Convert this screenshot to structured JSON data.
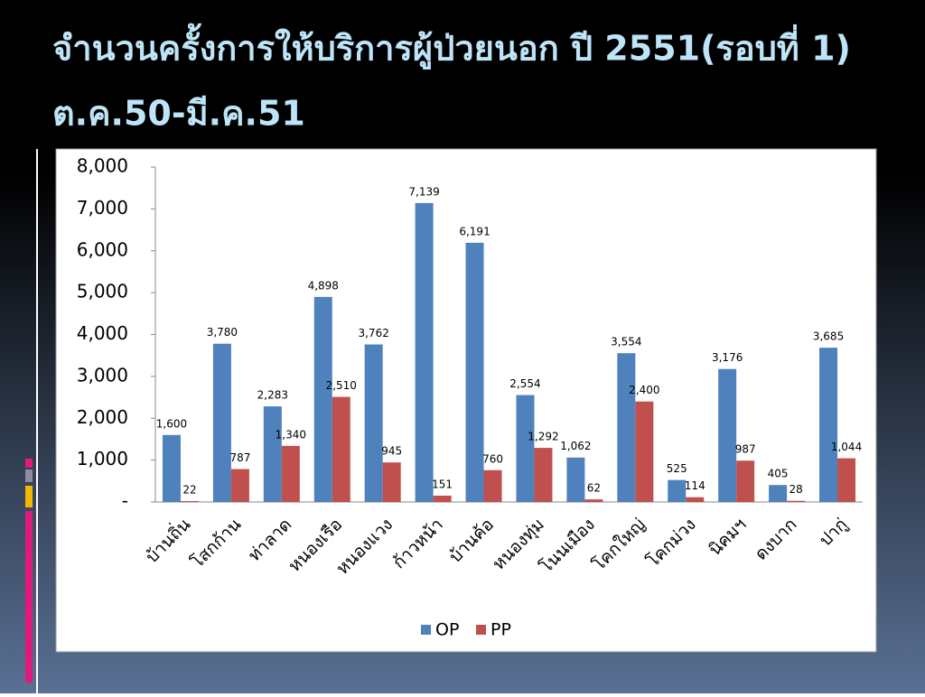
{
  "title": [
    "จำนวนครั้งการให้บริการผู้ป่วยนอก ปี 2551(รอบที่ 1)",
    "ต.ค.50-มี.ค.51"
  ],
  "chart_data": {
    "type": "bar",
    "categories": [
      "บ้านถิ่น",
      "โสกก้าน",
      "ท่าลาด",
      "หนองเรือ",
      "หนองแวง",
      "ก้าวหน้า",
      "บ้านค้อ",
      "หนองทุ่ม",
      "โนนเมือง",
      "โคกใหญ่",
      "โคกม่วง",
      "นิคมฯ",
      "ดงบาก",
      "ปากู่"
    ],
    "series": [
      {
        "name": "OP",
        "color": "#4f81bd",
        "values": [
          1600,
          3780,
          2283,
          4898,
          3762,
          7139,
          6191,
          2554,
          1062,
          3554,
          525,
          3176,
          405,
          3685
        ],
        "value_labels": [
          "1,600",
          "3,780",
          "2,283",
          "4,898",
          "3,762",
          "7,139",
          "6,191",
          "2,554",
          "1,062",
          "3,554",
          "525",
          "3,176",
          "405",
          "3,685"
        ]
      },
      {
        "name": "PP",
        "color": "#c0504d",
        "values": [
          22,
          787,
          1340,
          2510,
          945,
          151,
          760,
          1292,
          62,
          2400,
          114,
          987,
          28,
          1044
        ],
        "value_labels": [
          "22",
          "787",
          "1,340",
          "2,510",
          "945",
          "151",
          "760",
          "1,292",
          "62",
          "2,400",
          "114",
          "987",
          "28",
          "1,044"
        ]
      }
    ],
    "ylim": [
      0,
      8000
    ],
    "yticks": [
      {
        "value": 0,
        "label": "-"
      },
      {
        "value": 1000,
        "label": "1,000"
      },
      {
        "value": 2000,
        "label": "2,000"
      },
      {
        "value": 3000,
        "label": "3,000"
      },
      {
        "value": 4000,
        "label": "4,000"
      },
      {
        "value": 5000,
        "label": "5,000"
      },
      {
        "value": 6000,
        "label": "6,000"
      },
      {
        "value": 7000,
        "label": "7,000"
      },
      {
        "value": 8000,
        "label": "8,000"
      }
    ],
    "legend": "bottom"
  }
}
